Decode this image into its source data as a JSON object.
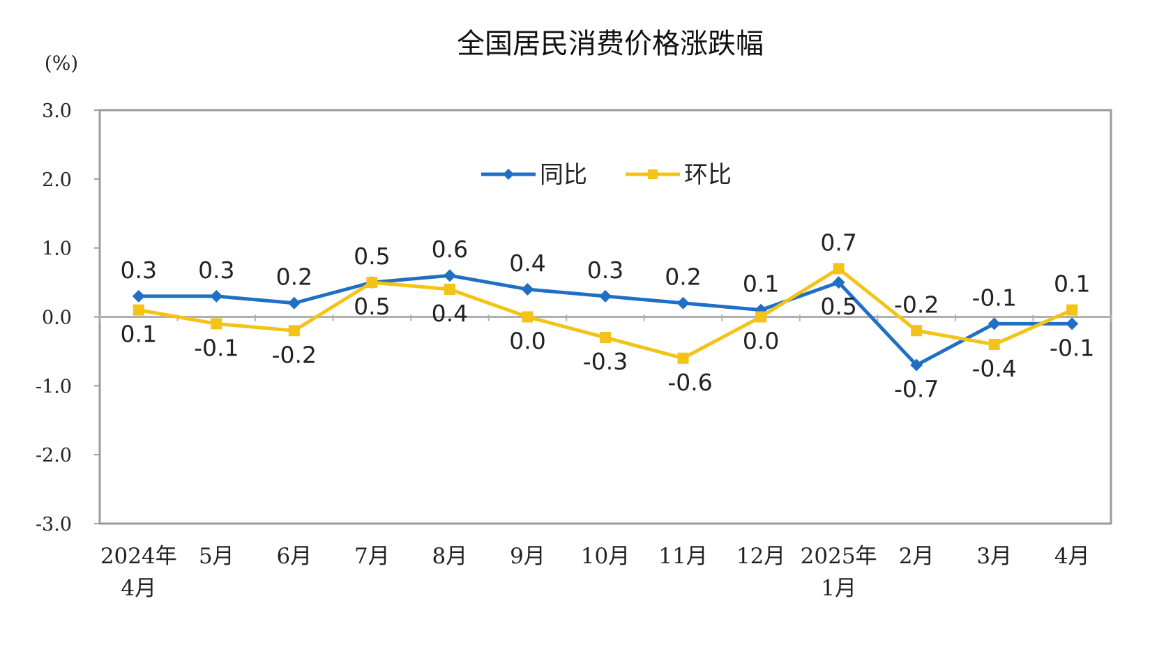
{
  "chart_data": {
    "type": "line",
    "title": "全国居民消费价格涨跌幅",
    "yunit": "(%)",
    "xlabel": "",
    "ylabel": "",
    "ylim": [
      -3.0,
      3.0
    ],
    "yticks": [
      "3.0",
      "2.0",
      "1.0",
      "0.0",
      "-1.0",
      "-2.0",
      "-3.0"
    ],
    "ytick_values": [
      3,
      2,
      1,
      0,
      -1,
      -2,
      -3
    ],
    "categories": [
      [
        "2024年",
        "4月"
      ],
      [
        "5月"
      ],
      [
        "6月"
      ],
      [
        "7月"
      ],
      [
        "8月"
      ],
      [
        "9月"
      ],
      [
        "10月"
      ],
      [
        "11月"
      ],
      [
        "12月"
      ],
      [
        "2025年",
        "1月"
      ],
      [
        "2月"
      ],
      [
        "3月"
      ],
      [
        "4月"
      ]
    ],
    "grid": false,
    "legend_position": "top-center",
    "series": [
      {
        "name": "同比",
        "color": "#1f6fc5",
        "marker": "diamond",
        "values": [
          0.3,
          0.3,
          0.2,
          0.5,
          0.6,
          0.4,
          0.3,
          0.2,
          0.1,
          0.5,
          -0.7,
          -0.1,
          -0.1
        ],
        "labels": [
          "0.3",
          "0.3",
          "0.2",
          "0.5",
          "0.6",
          "0.4",
          "0.3",
          "0.2",
          "0.1",
          "0.5",
          "-0.7",
          "-0.1",
          "-0.1"
        ]
      },
      {
        "name": "环比",
        "color": "#f3c317",
        "marker": "square",
        "values": [
          0.1,
          -0.1,
          -0.2,
          0.5,
          0.4,
          0.0,
          -0.3,
          -0.6,
          0.0,
          0.7,
          -0.2,
          -0.4,
          0.1
        ],
        "labels": [
          "0.1",
          "-0.1",
          "-0.2",
          "0.5",
          "0.4",
          "0.0",
          "-0.3",
          "-0.6",
          "0.0",
          "0.7",
          "-0.2",
          "-0.4",
          "0.1"
        ]
      }
    ]
  }
}
